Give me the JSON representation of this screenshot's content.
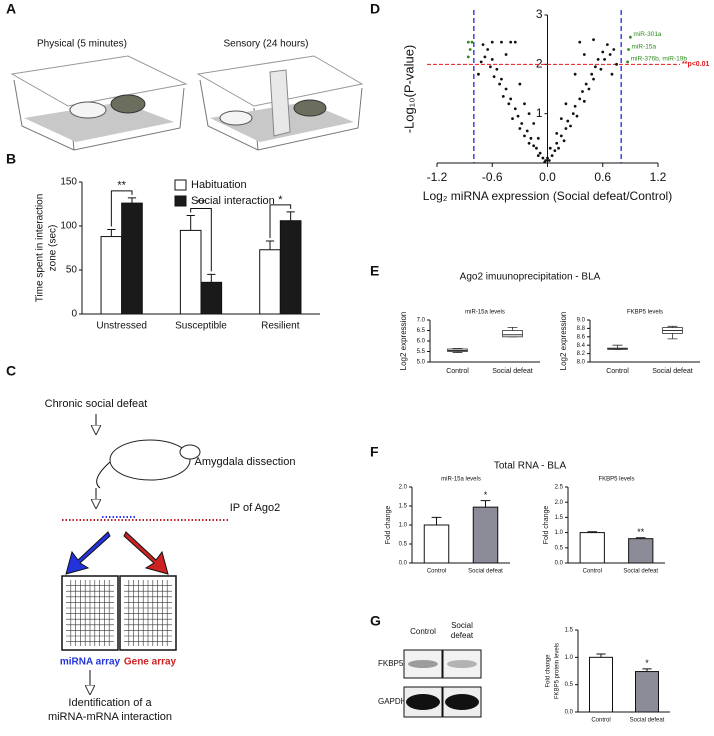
{
  "panels": {
    "labels": [
      "A",
      "B",
      "C",
      "D",
      "E",
      "F",
      "G"
    ],
    "A": {
      "captions": [
        "Physical (5 minutes)",
        "Sensory (24 hours)"
      ]
    },
    "C": {
      "steps": [
        "Chronic social defeat",
        "Amygdala dissection",
        "IP of Ago2",
        "miRNA array",
        "Gene array",
        "Identification of a",
        "miRNA-mRNA interaction"
      ]
    },
    "E": {
      "heading": "Ago2 imuunoprecipitation - BLA"
    },
    "F": {
      "heading": "Total RNA - BLA"
    },
    "G": {
      "blot_columns": [
        [
          "Control"
        ],
        [
          "Social",
          "defeat"
        ]
      ],
      "blot_rows": [
        "FKBP5",
        "GAPDH"
      ]
    }
  },
  "chart_data": [
    {
      "type": "bar",
      "ylabel": [
        "Time spent in interaction",
        "zone (sec)"
      ],
      "categories": [
        "Unstressed",
        "Susceptible",
        "Resilient"
      ],
      "series": [
        {
          "name": "Habituation",
          "color": "#ffffff",
          "values": [
            88,
            95,
            73
          ],
          "errors": [
            8,
            17,
            10
          ]
        },
        {
          "name": "Social interaction",
          "color": "#1a1a1a",
          "values": [
            126,
            36,
            106
          ],
          "errors": [
            6,
            9,
            10
          ]
        }
      ],
      "significance": [
        "**",
        "**",
        "*"
      ],
      "ylim": [
        0,
        150
      ],
      "yticks": [
        0,
        50,
        100,
        150
      ]
    },
    {
      "type": "scatter",
      "ylabel": "-Log₁₀(P-value)",
      "xlabel": "Log₂ miRNA expression (Social defeat/Control)",
      "xlim": [
        -1.2,
        1.2
      ],
      "ylim": [
        0,
        3
      ],
      "xticks": [
        -1.2,
        -0.6,
        {
          "value": 0,
          "label": "0.0"
        },
        0.6,
        1.2
      ],
      "yticks": [
        1,
        2,
        3
      ],
      "series": [
        {
          "color": "#111111",
          "x": [
            -0.02,
            -0.05,
            -0.08,
            -0.1,
            -0.12,
            -0.15,
            -0.18,
            -0.2,
            -0.22,
            -0.25,
            -0.28,
            -0.3,
            -0.32,
            -0.35,
            -0.38,
            -0.4,
            -0.42,
            -0.45,
            -0.48,
            -0.5,
            -0.52,
            -0.55,
            -0.58,
            -0.6,
            -0.62,
            -0.65,
            -0.68,
            -0.7,
            -0.72,
            -0.75,
            -0.5,
            -0.45,
            -0.4,
            -0.3,
            -0.25,
            -0.2,
            -0.15,
            -0.1,
            -0.35,
            -0.6,
            0.02,
            0.05,
            0.08,
            0.1,
            0.12,
            0.15,
            0.18,
            0.2,
            0.22,
            0.25,
            0.28,
            0.3,
            0.32,
            0.35,
            0.38,
            0.4,
            0.42,
            0.45,
            0.48,
            0.5,
            0.52,
            0.55,
            0.58,
            0.6,
            0.62,
            0.65,
            0.68,
            0.7,
            0.72,
            0.75,
            0.5,
            0.4,
            0.3,
            0.2,
            0.15,
            0.1,
            0.0,
            -0.03,
            0.03,
            0.35
          ],
          "values": [
            0.05,
            0.1,
            0.2,
            0.15,
            0.3,
            0.35,
            0.5,
            0.4,
            0.65,
            0.55,
            0.8,
            0.7,
            0.95,
            1.1,
            0.9,
            1.3,
            1.2,
            1.5,
            1.35,
            1.7,
            1.6,
            1.9,
            1.75,
            2.1,
            1.95,
            2.3,
            2.15,
            2.4,
            2.05,
            1.8,
            2.45,
            2.2,
            2.45,
            1.6,
            1.2,
            1.0,
            0.8,
            0.5,
            2.45,
            2.45,
            0.05,
            0.15,
            0.25,
            0.4,
            0.3,
            0.55,
            0.45,
            0.7,
            0.85,
            0.75,
            1.0,
            1.15,
            0.95,
            1.3,
            1.45,
            1.25,
            1.6,
            1.5,
            1.8,
            1.7,
            1.95,
            2.1,
            1.9,
            2.25,
            2.1,
            2.4,
            2.2,
            1.8,
            2.3,
            2.0,
            2.5,
            2.2,
            1.8,
            1.2,
            0.9,
            0.6,
            0.1,
            0.02,
            0.3,
            2.45
          ]
        },
        {
          "color": "#2e8b1e",
          "x": [
            -0.86,
            -0.82,
            -0.84,
            -0.86,
            0.9,
            0.88,
            0.87
          ],
          "values": [
            2.45,
            2.45,
            2.3,
            2.15,
            2.55,
            2.3,
            2.05
          ],
          "labels": [
            null,
            null,
            null,
            null,
            "miR-301a",
            "miR-15a",
            "miR-376b, miR-19b"
          ]
        }
      ],
      "hlines": [
        {
          "value": 2,
          "label": "**p<0.01",
          "color": "#e31a1c"
        }
      ],
      "vlines": [
        {
          "value": -0.8,
          "color": "#2222ee"
        },
        {
          "value": 0.8,
          "color": "#2222ee"
        }
      ]
    },
    {
      "type": "box",
      "title": "miR-15a levels",
      "ylabel": "Log2 expression",
      "categories": [
        "Control",
        "Social defeat"
      ],
      "boxes": [
        {
          "min": 5.45,
          "q1": 5.5,
          "median": 5.55,
          "q3": 5.62,
          "max": 5.65
        },
        {
          "min": 6.2,
          "q1": 6.2,
          "median": 6.3,
          "q3": 6.5,
          "max": 6.65
        }
      ],
      "ylim": [
        5.0,
        7.0
      ],
      "yticks": [
        {
          "value": 5,
          "label": "5.0"
        },
        5.5,
        {
          "value": 6,
          "label": "6.0"
        },
        6.5,
        {
          "value": 7,
          "label": "7.0"
        }
      ]
    },
    {
      "type": "box",
      "title": "FKBP5 levels",
      "ylabel": "Log2 expression",
      "categories": [
        "Control",
        "Social defeat"
      ],
      "boxes": [
        {
          "min": 8.3,
          "q1": 8.3,
          "median": 8.31,
          "q3": 8.33,
          "max": 8.4
        },
        {
          "min": 8.55,
          "q1": 8.68,
          "median": 8.75,
          "q3": 8.82,
          "max": 8.85
        }
      ],
      "ylim": [
        8.0,
        9.0
      ],
      "yticks": [
        {
          "value": 8,
          "label": "8.0"
        },
        8.2,
        8.4,
        8.6,
        8.8,
        {
          "value": 9,
          "label": "9.0"
        }
      ]
    },
    {
      "type": "bar",
      "title": "miR-15a levels",
      "ylabel": "Fold change",
      "categories": [
        "Control",
        "Social defeat"
      ],
      "series": [
        {
          "colors": [
            "#ffffff",
            "#8c8c99"
          ],
          "values": [
            1.0,
            1.47
          ],
          "errors": [
            0.2,
            0.17
          ]
        }
      ],
      "significance": [
        null,
        "*"
      ],
      "ylim": [
        0,
        2.0
      ],
      "yticks": [
        {
          "value": 0,
          "label": "0.0"
        },
        0.5,
        {
          "value": 1,
          "label": "1.0"
        },
        1.5,
        {
          "value": 2,
          "label": "2.0"
        }
      ]
    },
    {
      "type": "bar",
      "title": "FKBP5 levels",
      "ylabel": "Fold change",
      "categories": [
        "Control",
        "Social defeat"
      ],
      "series": [
        {
          "colors": [
            "#ffffff",
            "#8c8c99"
          ],
          "values": [
            1.0,
            0.8
          ],
          "errors": [
            0.03,
            0.03
          ]
        }
      ],
      "significance": [
        null,
        "**"
      ],
      "ylim": [
        0,
        2.5
      ],
      "yticks": [
        {
          "value": 0,
          "label": "0.0"
        },
        0.5,
        {
          "value": 1,
          "label": "1.0"
        },
        1.5,
        {
          "value": 2,
          "label": "2.0"
        },
        2.5
      ]
    },
    {
      "type": "bar",
      "ylabel": [
        "Fold change",
        "FKBP5 protein levels"
      ],
      "categories": [
        "Control",
        "Social defeat"
      ],
      "series": [
        {
          "colors": [
            "#ffffff",
            "#8c8c99"
          ],
          "values": [
            1.0,
            0.74
          ],
          "errors": [
            0.06,
            0.05
          ]
        }
      ],
      "significance": [
        null,
        "*"
      ],
      "ylim": [
        0,
        1.5
      ],
      "yticks": [
        {
          "value": 0,
          "label": "0.0"
        },
        0.5,
        {
          "value": 1,
          "label": "1.0"
        },
        1.5
      ]
    }
  ]
}
